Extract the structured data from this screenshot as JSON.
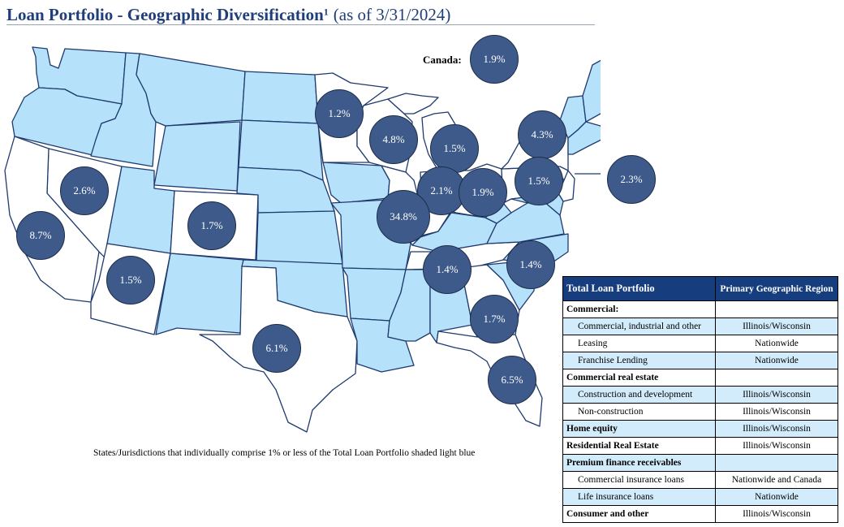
{
  "header": {
    "title": "Loan Portfolio - Geographic Diversification",
    "footnote_marker": "1",
    "as_of": "(as of 3/31/2024)"
  },
  "map": {
    "canada_label": "Canada:",
    "footnote": "States/Jurisdictions that individually comprise 1% or less of the Total Loan Portfolio shaded light blue",
    "colors": {
      "light": "#b5e2fa",
      "white": "#ffffff",
      "bubble": "#3e5a8a",
      "state_border": "#1f3a6e"
    },
    "bubbles": [
      {
        "region": "Canada",
        "value": "1.9%"
      },
      {
        "region": "Minnesota",
        "value": "1.2%"
      },
      {
        "region": "Wisconsin",
        "value": "4.8%"
      },
      {
        "region": "Michigan",
        "value": "1.5%"
      },
      {
        "region": "New York",
        "value": "4.3%"
      },
      {
        "region": "Pennsylvania",
        "value": "1.5%"
      },
      {
        "region": "New Jersey",
        "value": "2.3%"
      },
      {
        "region": "Nevada",
        "value": "2.6%"
      },
      {
        "region": "California",
        "value": "8.7%"
      },
      {
        "region": "Colorado",
        "value": "1.7%"
      },
      {
        "region": "Arizona",
        "value": "1.5%"
      },
      {
        "region": "Indiana",
        "value": "2.1%"
      },
      {
        "region": "Ohio",
        "value": "1.9%"
      },
      {
        "region": "Illinois",
        "value": "34.8%"
      },
      {
        "region": "Tennessee",
        "value": "1.4%"
      },
      {
        "region": "North Carolina",
        "value": "1.4%"
      },
      {
        "region": "Texas",
        "value": "6.1%"
      },
      {
        "region": "Georgia",
        "value": "1.7%"
      },
      {
        "region": "Florida",
        "value": "6.5%"
      }
    ]
  },
  "table": {
    "header_left": "Total Loan Portfolio",
    "header_right": "Primary Geographic Region",
    "rows": [
      {
        "label": "Commercial:",
        "region": "",
        "group": true,
        "shade": false
      },
      {
        "label": "Commercial, industrial and other",
        "region": "Illinois/Wisconsin",
        "group": false,
        "shade": true
      },
      {
        "label": "Leasing",
        "region": "Nationwide",
        "group": false,
        "shade": false
      },
      {
        "label": "Franchise Lending",
        "region": "Nationwide",
        "group": false,
        "shade": true
      },
      {
        "label": "Commercial real estate",
        "region": "",
        "group": true,
        "shade": false
      },
      {
        "label": "Construction and development",
        "region": "Illinois/Wisconsin",
        "group": false,
        "shade": true
      },
      {
        "label": "Non-construction",
        "region": "Illinois/Wisconsin",
        "group": false,
        "shade": false
      },
      {
        "label": "Home equity",
        "region": "Illinois/Wisconsin",
        "group": true,
        "shade": true
      },
      {
        "label": "Residential Real Estate",
        "region": "Illinois/Wisconsin",
        "group": true,
        "shade": false
      },
      {
        "label": "Premium finance receivables",
        "region": "",
        "group": true,
        "shade": true
      },
      {
        "label": "Commercial insurance loans",
        "region": "Nationwide and Canada",
        "group": false,
        "shade": false
      },
      {
        "label": "Life insurance loans",
        "region": "Nationwide",
        "group": false,
        "shade": true
      },
      {
        "label": "Consumer and other",
        "region": "Illinois/Wisconsin",
        "group": true,
        "shade": false
      }
    ]
  }
}
